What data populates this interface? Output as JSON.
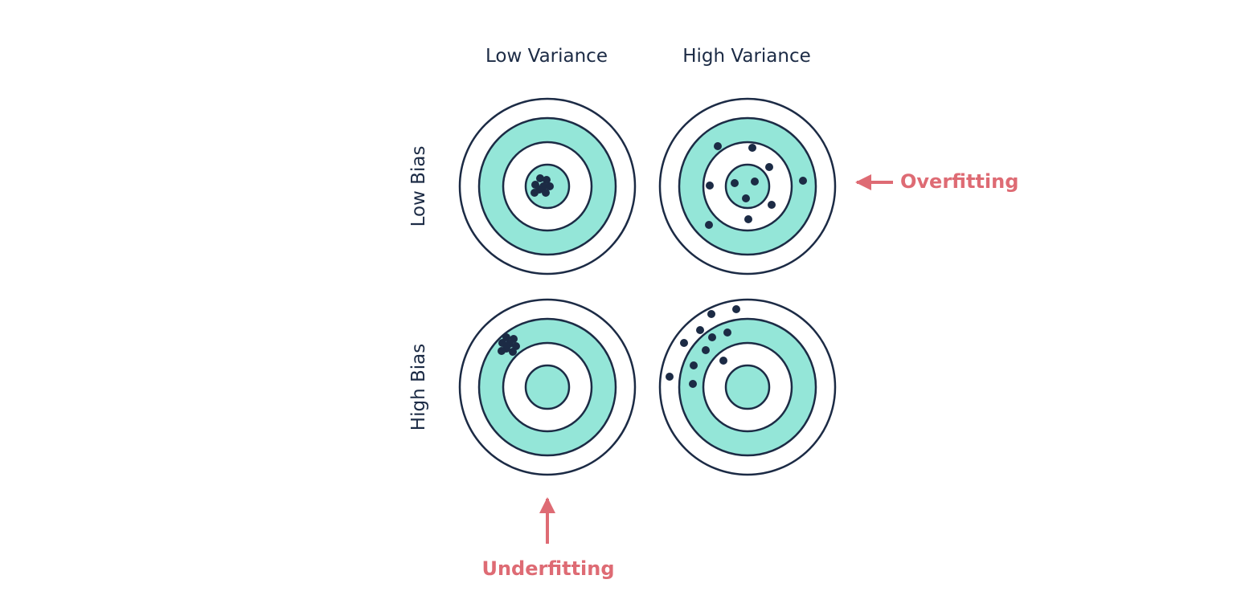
{
  "columns": {
    "low_variance": "Low Variance",
    "high_variance": "High Variance"
  },
  "rows": {
    "low_bias": "Low Bias",
    "high_bias": "High Bias"
  },
  "callouts": {
    "overfitting": "Overfitting",
    "underfitting": "Underfitting"
  },
  "colors": {
    "ring_fill": "#94e6d8",
    "ring_stroke": "#1c2b45",
    "shot": "#1c2b45",
    "callout": "#de6b74",
    "text": "#1c2b45"
  }
}
